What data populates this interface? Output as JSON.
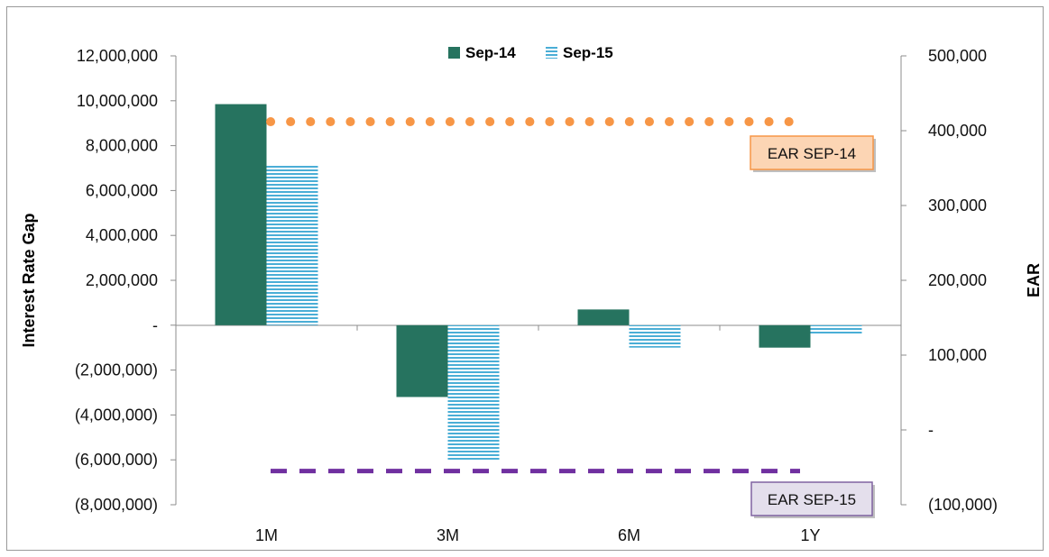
{
  "chart_data": {
    "type": "bar",
    "categories": [
      "1M",
      "3M",
      "6M",
      "1Y"
    ],
    "series": [
      {
        "name": "Sep-14",
        "values": [
          9850000,
          -3200000,
          700000,
          -1000000
        ],
        "color": "#26735f",
        "pattern": "solid"
      },
      {
        "name": "Sep-15",
        "values": [
          7100000,
          -6000000,
          -1000000,
          -450000
        ],
        "color": "#4aaed6",
        "pattern": "horizontal-stripes"
      }
    ],
    "ylabel": "Interest Rate Gap",
    "ylim": [
      -8000000,
      12000000
    ],
    "yticks": [
      12000000,
      10000000,
      8000000,
      6000000,
      4000000,
      2000000,
      0,
      -2000000,
      -4000000,
      -6000000,
      -8000000
    ],
    "yticks_labels": [
      "12,000,000",
      "10,000,000",
      "8,000,000",
      "6,000,000",
      "4,000,000",
      "2,000,000",
      "-",
      "(2,000,000)",
      "(4,000,000)",
      "(6,000,000)",
      "(8,000,000)"
    ],
    "y2label": "EAR",
    "y2lim": [
      -100000,
      500000
    ],
    "y2ticks": [
      500000,
      400000,
      300000,
      200000,
      100000,
      0,
      -100000
    ],
    "y2ticks_labels": [
      "500,000",
      "400,000",
      "300,000",
      "200,000",
      "100,000",
      "-",
      "(100,000)"
    ],
    "reference_lines": [
      {
        "name": "EAR SEP-14",
        "axis": "y2",
        "value": 412000,
        "style": "dotted",
        "color": "#f79646",
        "label_bg": "#fcd5b4",
        "label_border": "#f79646"
      },
      {
        "name": "EAR SEP-15",
        "axis": "y2",
        "value": -55000,
        "style": "dashed",
        "color": "#7030a0",
        "label_bg": "#e4dfec",
        "label_border": "#8064a2"
      }
    ],
    "legend_position": "top-center",
    "grid": false
  }
}
